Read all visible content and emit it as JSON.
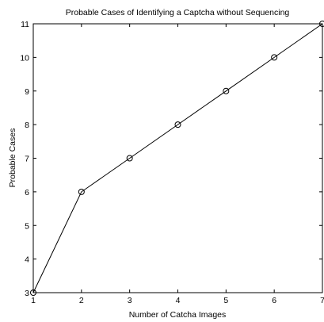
{
  "chart_data": {
    "type": "line",
    "title": "Probable Cases of Identifying a Captcha without Sequencing",
    "xlabel": "Number of Catcha Images",
    "ylabel": "Probable Cases",
    "x": [
      1,
      2,
      3,
      4,
      5,
      6,
      7
    ],
    "series": [
      {
        "values": [
          3,
          6,
          7,
          8,
          9,
          10,
          11
        ]
      }
    ],
    "xlim": [
      1,
      7
    ],
    "ylim": [
      3,
      11
    ],
    "xticks": [
      "1",
      "2",
      "3",
      "4",
      "5",
      "6",
      "7"
    ],
    "yticks": [
      "3",
      "4",
      "5",
      "6",
      "7",
      "8",
      "9",
      "10",
      "11"
    ],
    "grid": false,
    "marker": "circle",
    "colors": {
      "line": "#000000",
      "axes": "#000000",
      "background": "#ffffff"
    }
  }
}
